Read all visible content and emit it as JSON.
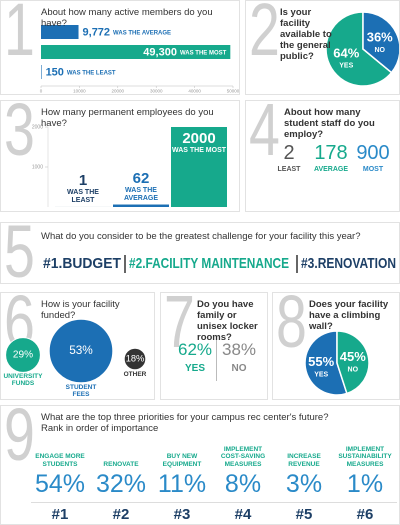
{
  "sections": [
    {
      "number": 1,
      "type": "hbar",
      "question": "About how many active members do you have?",
      "values": [
        9772,
        49300,
        150
      ],
      "value_labels": [
        "9,772",
        "49,300",
        "150"
      ],
      "captions": [
        "WAS THE AVERAGE",
        "WAS THE MOST",
        "WAS THE LEAST"
      ],
      "colors": [
        "#1c6fb4",
        "#16a98c",
        "#1c6fb4"
      ],
      "xlim": [
        0,
        50000
      ],
      "xticks": [
        0,
        10000,
        20000,
        30000,
        40000,
        50000
      ]
    },
    {
      "number": 2,
      "type": "pie",
      "question": "Is your facility available to the general public?",
      "categories": [
        "YES",
        "NO"
      ],
      "values": [
        64,
        36
      ],
      "value_labels": [
        "64%",
        "36%"
      ],
      "colors": [
        "#16a98c",
        "#1c6fb4"
      ]
    },
    {
      "number": 3,
      "type": "vbar",
      "question": "How many permanent employees do you have?",
      "values": [
        1,
        62,
        2000
      ],
      "captions": [
        "WAS THE LEAST",
        "WAS THE AVERAGE",
        "WAS THE MOST"
      ],
      "colors": [
        "#1d3f66",
        "#1c6fb4",
        "#16a98c"
      ],
      "ylim": [
        0,
        2000
      ],
      "yticks": [
        1000,
        2000
      ]
    },
    {
      "number": 4,
      "type": "stats",
      "question": "About how many student staff do you employ?",
      "categories": [
        "LEAST",
        "AVERAGE",
        "MOST"
      ],
      "values": [
        2,
        178,
        900
      ],
      "colors": [
        "#555555",
        "#16a98c",
        "#2a8ac8"
      ]
    },
    {
      "number": 5,
      "type": "ranking",
      "question": "What do you consider to be the greatest challenge for your facility this year?",
      "items": [
        "#1.BUDGET",
        "#2.FACILITY MAINTENANCE",
        "#3.RENOVATION"
      ],
      "colors": [
        "#1d3f66",
        "#16a98c",
        "#1d3f66"
      ]
    },
    {
      "number": 6,
      "type": "bubble",
      "question": "How is your facility funded?",
      "categories": [
        "UNIVERSITY FUNDS",
        "STUDENT FEES",
        "OTHER"
      ],
      "values": [
        29,
        53,
        18
      ],
      "value_labels": [
        "29%",
        "53%",
        "18%"
      ],
      "colors": [
        "#16a98c",
        "#1c6fb4",
        "#333333"
      ]
    },
    {
      "number": 7,
      "type": "split",
      "question": "Do you have family or unisex locker rooms?",
      "categories": [
        "YES",
        "NO"
      ],
      "figures": [
        "62%",
        "38%"
      ],
      "colors": [
        "#16a98c",
        "#888888"
      ]
    },
    {
      "number": 8,
      "type": "pie",
      "question": "Does your facility have a climbing wall?",
      "categories": [
        "YES",
        "NO"
      ],
      "values": [
        55,
        45
      ],
      "value_labels": [
        "55%",
        "45%"
      ],
      "colors": [
        "#1c6fb4",
        "#16a98c"
      ]
    },
    {
      "number": 9,
      "type": "columns",
      "question": "What are the top three priorities for your campus rec center's future?",
      "subtitle": "Rank in order of importance",
      "categories": [
        "ENGAGE MORE STUDENTS",
        "RENOVATE",
        "BUY NEW EQUIPMENT",
        "IMPLEMENT COST-SAVING MEASURES",
        "INCREASE REVENUE",
        "IMPLEMENT SUSTAINABILITY MEASURES"
      ],
      "figures": [
        "54%",
        "32%",
        "11%",
        "8%",
        "3%",
        "1%"
      ],
      "ranks": [
        "#1",
        "#2",
        "#3",
        "#4",
        "#5",
        "#6"
      ]
    }
  ]
}
